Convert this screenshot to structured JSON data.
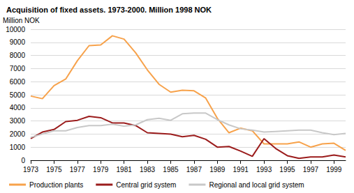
{
  "chart_data": {
    "type": "line",
    "title": "Acquisition of fixed assets. 1973-2000. Million 1998 NOK",
    "ylabel": "Million NOK",
    "x": [
      1973,
      1974,
      1975,
      1976,
      1977,
      1978,
      1979,
      1980,
      1981,
      1982,
      1983,
      1984,
      1985,
      1986,
      1987,
      1988,
      1989,
      1990,
      1991,
      1992,
      1993,
      1994,
      1995,
      1996,
      1997,
      1998,
      1999,
      2000
    ],
    "series": [
      {
        "name": "Production plants",
        "color": "#f7a24b",
        "values": [
          4900,
          4700,
          5700,
          6200,
          7600,
          8750,
          8800,
          9500,
          9250,
          8200,
          6900,
          5800,
          5200,
          5350,
          5300,
          4750,
          3200,
          2100,
          2450,
          2250,
          1250,
          1250,
          1250,
          1400,
          1000,
          1250,
          1300,
          750
        ]
      },
      {
        "name": "Central grid system",
        "color": "#9b1c1c",
        "values": [
          1650,
          2150,
          2350,
          2950,
          3050,
          3350,
          3250,
          2850,
          2850,
          2650,
          2100,
          2050,
          2000,
          1800,
          1900,
          1600,
          1000,
          1050,
          700,
          300,
          1650,
          900,
          350,
          150,
          250,
          250,
          400,
          250
        ]
      },
      {
        "name": "Regional and local grid system",
        "color": "#c8c8c8",
        "values": [
          1750,
          2000,
          2250,
          2250,
          2500,
          2650,
          2650,
          2750,
          2600,
          2700,
          3100,
          3200,
          3050,
          3550,
          3600,
          3600,
          3100,
          2700,
          2400,
          2300,
          2150,
          2200,
          2250,
          2300,
          2300,
          2100,
          1950,
          2050
        ]
      }
    ],
    "xlim": [
      1973,
      2000
    ],
    "xticks": [
      1973,
      1975,
      1977,
      1979,
      1981,
      1983,
      1985,
      1987,
      1989,
      1991,
      1993,
      1995,
      1997,
      1999
    ],
    "ylim": [
      0,
      10000
    ],
    "yticks": [
      0,
      1000,
      2000,
      3000,
      4000,
      5000,
      6000,
      7000,
      8000,
      9000,
      10000
    ],
    "grid": true,
    "legend": "bottom"
  }
}
